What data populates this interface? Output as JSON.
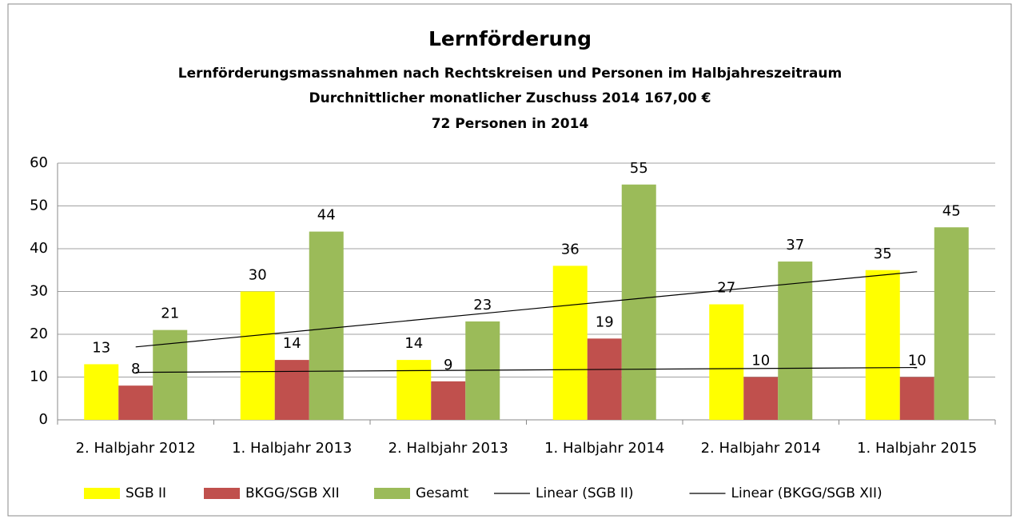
{
  "chart_data": {
    "type": "bar",
    "title": "Lernförderung",
    "subtitles": [
      "Lernförderungsmassnahmen nach Rechtskreisen und Personen im Halbjahreszeitraum",
      "Durchnittlicher monatlicher Zuschuss  2014 167,00 €",
      "72 Personen in 2014"
    ],
    "categories": [
      "2. Halbjahr 2012",
      "1. Halbjahr 2013",
      "2. Halbjahr 2013",
      "1. Halbjahr 2014",
      "2. Halbjahr 2014",
      "1. Halbjahr 2015"
    ],
    "series": [
      {
        "name": "SGB II",
        "color": "#ffff00",
        "values": [
          13,
          30,
          14,
          36,
          27,
          35
        ],
        "trendline": "Linear (SGB II)"
      },
      {
        "name": "BKGG/SGB XII",
        "color": "#c0504d",
        "values": [
          8,
          14,
          9,
          19,
          10,
          10
        ],
        "trendline": "Linear (BKGG/SGB XII)"
      },
      {
        "name": "Gesamt",
        "color": "#9bbb59",
        "values": [
          21,
          44,
          23,
          55,
          37,
          45
        ]
      }
    ],
    "ylim": [
      0,
      60
    ],
    "yticks": [
      0,
      10,
      20,
      30,
      40,
      50,
      60
    ],
    "grid": true,
    "legend": "bottom"
  }
}
